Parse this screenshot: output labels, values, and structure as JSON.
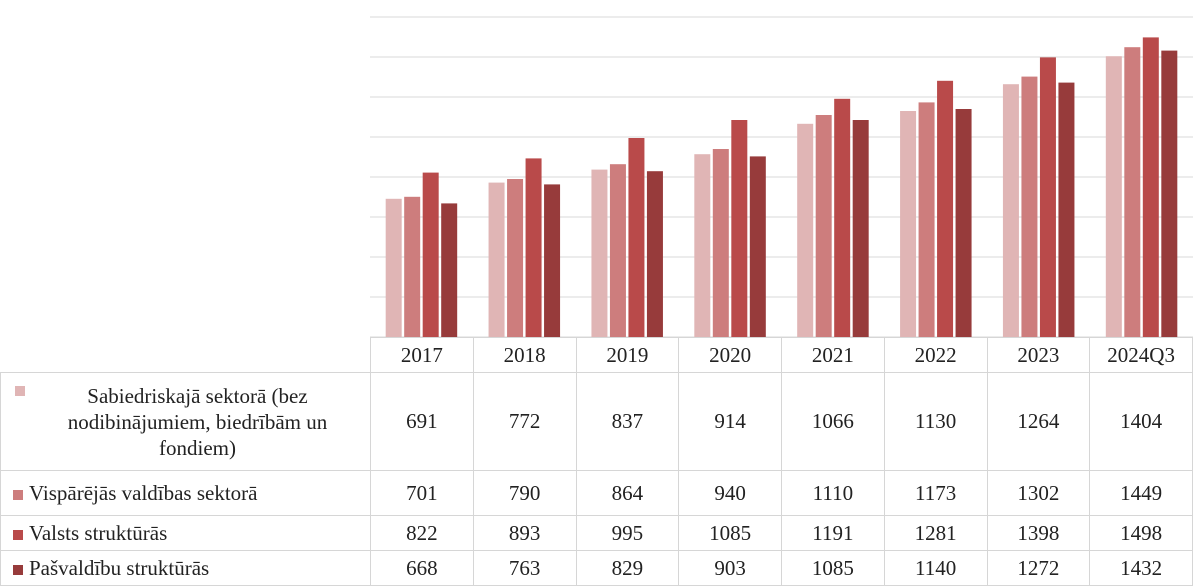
{
  "chart_data": {
    "type": "bar",
    "categories": [
      "2017",
      "2018",
      "2019",
      "2020",
      "2021",
      "2022",
      "2023",
      "2024Q3"
    ],
    "series": [
      {
        "name": "Sabiedriskajā sektorā (bez nodibinājumiem, biedrībām un fondiem)",
        "color": "#e0b5b5",
        "values": [
          691,
          772,
          837,
          914,
          1066,
          1130,
          1264,
          1404
        ]
      },
      {
        "name": "Vispārējās valdības sektorā",
        "color": "#cd7d7d",
        "values": [
          701,
          790,
          864,
          940,
          1110,
          1173,
          1302,
          1449
        ]
      },
      {
        "name": "Valsts struktūrās",
        "color": "#b94a4a",
        "values": [
          822,
          893,
          995,
          1085,
          1191,
          1281,
          1398,
          1498
        ]
      },
      {
        "name": "Pašvaldību struktūrās",
        "color": "#973b3b",
        "values": [
          668,
          763,
          829,
          903,
          1085,
          1140,
          1272,
          1432
        ]
      }
    ],
    "ylim": [
      0,
      1600
    ],
    "yticks": [
      0,
      200,
      400,
      600,
      800,
      1000,
      1200,
      1400,
      1600
    ],
    "grid": true
  }
}
